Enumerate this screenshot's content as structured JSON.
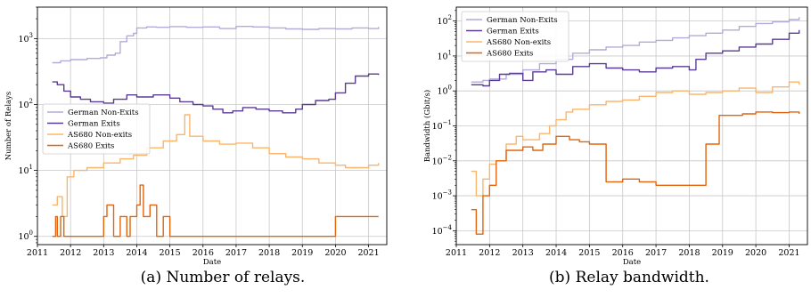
{
  "figure": {
    "caption_a": "(a) Number of relays.",
    "caption_b": "(b) Relay bandwidth."
  },
  "colors": {
    "german_non_exits": "#b3acd6",
    "german_exits": "#5b3c93",
    "as680_non_exits": "#f9b56b",
    "as680_exits": "#e0650e",
    "grid": "#c8c8c8"
  },
  "chart_data": [
    {
      "type": "line",
      "xlabel": "Date",
      "ylabel": "Number of Relays",
      "yscale": "log",
      "ylim": [
        0.75,
        3000
      ],
      "xlim": [
        2011.0,
        2021.55
      ],
      "x_ticks": [
        "2011",
        "2012",
        "2013",
        "2014",
        "2015",
        "2016",
        "2017",
        "2018",
        "2019",
        "2020",
        "2021"
      ],
      "y_ticks": [
        "10^0",
        "10^1",
        "10^2",
        "10^3"
      ],
      "grid": true,
      "legend_position": "center-left",
      "series": [
        {
          "name": "German Non-Exits",
          "color_key": "german_non_exits",
          "x": [
            2011.45,
            2011.7,
            2012.0,
            2012.5,
            2012.9,
            2013.1,
            2013.35,
            2013.5,
            2013.7,
            2013.9,
            2014.0,
            2014.3,
            2014.6,
            2015.0,
            2015.5,
            2016.0,
            2016.5,
            2017.0,
            2017.5,
            2018.0,
            2018.5,
            2019.0,
            2019.5,
            2020.0,
            2020.5,
            2021.0,
            2021.3
          ],
          "y": [
            430,
            460,
            480,
            500,
            510,
            560,
            600,
            900,
            1100,
            1200,
            1450,
            1500,
            1480,
            1520,
            1480,
            1500,
            1420,
            1530,
            1500,
            1450,
            1400,
            1380,
            1420,
            1400,
            1450,
            1420,
            1500
          ]
        },
        {
          "name": "German Exits",
          "color_key": "german_exits",
          "x": [
            2011.45,
            2011.6,
            2011.8,
            2012.0,
            2012.3,
            2012.6,
            2013.0,
            2013.3,
            2013.7,
            2014.0,
            2014.5,
            2015.0,
            2015.3,
            2015.7,
            2016.0,
            2016.3,
            2016.6,
            2016.9,
            2017.2,
            2017.6,
            2018.0,
            2018.4,
            2018.8,
            2019.0,
            2019.4,
            2019.8,
            2020.0,
            2020.3,
            2020.6,
            2021.0,
            2021.3
          ],
          "y": [
            220,
            200,
            160,
            130,
            120,
            110,
            105,
            120,
            140,
            130,
            140,
            125,
            110,
            100,
            95,
            85,
            75,
            80,
            90,
            85,
            80,
            75,
            85,
            100,
            115,
            120,
            150,
            210,
            270,
            290,
            280
          ]
        },
        {
          "name": "AS680 Non-exits",
          "color_key": "as680_non_exits",
          "x": [
            2011.45,
            2011.6,
            2011.75,
            2011.9,
            2012.1,
            2012.5,
            2013.0,
            2013.5,
            2013.9,
            2014.3,
            2014.8,
            2015.2,
            2015.45,
            2015.6,
            2016.0,
            2016.5,
            2017.0,
            2017.5,
            2018.0,
            2018.5,
            2019.0,
            2019.5,
            2020.0,
            2020.3,
            2020.6,
            2021.0,
            2021.3
          ],
          "y": [
            3,
            4,
            2,
            8,
            10,
            11,
            13,
            15,
            17,
            22,
            28,
            35,
            70,
            33,
            28,
            25,
            26,
            22,
            18,
            16,
            15,
            13,
            12,
            11,
            11,
            12,
            13
          ]
        },
        {
          "name": "AS680 Exits",
          "color_key": "as680_exits",
          "x": [
            2011.45,
            2011.55,
            2011.6,
            2011.7,
            2011.8,
            2012.0,
            2012.3,
            2012.6,
            2012.9,
            2013.0,
            2013.1,
            2013.3,
            2013.5,
            2013.7,
            2013.8,
            2014.0,
            2014.1,
            2014.2,
            2014.4,
            2014.6,
            2014.8,
            2015.0,
            2015.5,
            2016.0,
            2016.5,
            2017.0,
            2017.5,
            2018.0,
            2018.5,
            2019.0,
            2019.2,
            2019.4,
            2019.6,
            2019.8,
            2020.0,
            2020.2,
            2020.5,
            2020.8,
            2021.0,
            2021.3
          ],
          "y": [
            1,
            2,
            1,
            2,
            1,
            1,
            1,
            1,
            1,
            2,
            3,
            1,
            2,
            1,
            2,
            3,
            6,
            2,
            3,
            1,
            2,
            1,
            1,
            1,
            1,
            1,
            1,
            1,
            1,
            1,
            1,
            1,
            1,
            1,
            2,
            2,
            2,
            2,
            2,
            2
          ]
        }
      ]
    },
    {
      "type": "line",
      "xlabel": "Date",
      "ylabel": "Bandwidth (Gbit/s)",
      "yscale": "log",
      "ylim": [
        4e-05,
        250
      ],
      "xlim": [
        2011.0,
        2021.55
      ],
      "x_ticks": [
        "2011",
        "2012",
        "2013",
        "2014",
        "2015",
        "2016",
        "2017",
        "2018",
        "2019",
        "2020",
        "2021"
      ],
      "y_ticks": [
        "10^-4",
        "10^-3",
        "10^-2",
        "10^-1",
        "10^0",
        "10^1",
        "10^2"
      ],
      "grid": true,
      "legend_position": "top-left",
      "series": [
        {
          "name": "German Non-Exits",
          "color_key": "german_non_exits",
          "x": [
            2011.45,
            2011.8,
            2012.0,
            2012.5,
            2013.0,
            2013.5,
            2014.0,
            2014.5,
            2015.0,
            2015.5,
            2016.0,
            2016.5,
            2017.0,
            2017.5,
            2018.0,
            2018.5,
            2019.0,
            2019.5,
            2020.0,
            2020.5,
            2021.0,
            2021.3
          ],
          "y": [
            1.8,
            2.0,
            2.2,
            3.0,
            4.0,
            6.0,
            8.0,
            12,
            15,
            18,
            20,
            25,
            28,
            33,
            38,
            45,
            55,
            70,
            85,
            95,
            110,
            130
          ]
        },
        {
          "name": "German Exits",
          "color_key": "german_exits",
          "x": [
            2011.45,
            2011.8,
            2012.0,
            2012.3,
            2012.6,
            2013.0,
            2013.3,
            2013.7,
            2014.0,
            2014.5,
            2015.0,
            2015.5,
            2016.0,
            2016.5,
            2017.0,
            2017.5,
            2018.0,
            2018.2,
            2018.5,
            2019.0,
            2019.5,
            2020.0,
            2020.5,
            2021.0,
            2021.3
          ],
          "y": [
            1.5,
            1.4,
            2.0,
            3.0,
            3.2,
            2.0,
            3.5,
            4.0,
            3.0,
            5.0,
            6.0,
            4.5,
            4.0,
            3.5,
            4.5,
            5.0,
            4.0,
            8.0,
            12,
            14,
            18,
            22,
            30,
            45,
            55
          ]
        },
        {
          "name": "AS680 Non-exits",
          "color_key": "as680_non_exits",
          "x": [
            2011.45,
            2011.6,
            2011.8,
            2012.0,
            2012.2,
            2012.5,
            2012.8,
            2013.0,
            2013.5,
            2013.8,
            2014.0,
            2014.3,
            2014.5,
            2015.0,
            2015.5,
            2016.0,
            2016.5,
            2017.0,
            2017.5,
            2018.0,
            2018.5,
            2019.0,
            2019.5,
            2020.0,
            2020.5,
            2021.0,
            2021.3
          ],
          "y": [
            0.005,
            0.001,
            0.003,
            0.008,
            0.01,
            0.03,
            0.05,
            0.04,
            0.06,
            0.1,
            0.15,
            0.25,
            0.3,
            0.4,
            0.5,
            0.55,
            0.7,
            0.9,
            1.0,
            0.8,
            0.9,
            1.0,
            1.2,
            0.9,
            1.3,
            1.8,
            1.5
          ]
        },
        {
          "name": "AS680 Exits",
          "color_key": "as680_exits",
          "x": [
            2011.45,
            2011.6,
            2011.8,
            2012.0,
            2012.2,
            2012.5,
            2013.0,
            2013.3,
            2013.6,
            2014.0,
            2014.4,
            2014.7,
            2015.0,
            2015.5,
            2016.0,
            2016.5,
            2017.0,
            2017.5,
            2018.0,
            2018.5,
            2018.9,
            2019.2,
            2019.6,
            2020.0,
            2020.5,
            2021.0,
            2021.3
          ],
          "y": [
            0.0004,
            8e-05,
            0.001,
            0.002,
            0.01,
            0.02,
            0.025,
            0.02,
            0.03,
            0.05,
            0.04,
            0.035,
            0.03,
            0.0025,
            0.003,
            0.0025,
            0.002,
            0.002,
            0.002,
            0.03,
            0.2,
            0.2,
            0.22,
            0.25,
            0.24,
            0.25,
            0.22
          ]
        }
      ]
    }
  ]
}
